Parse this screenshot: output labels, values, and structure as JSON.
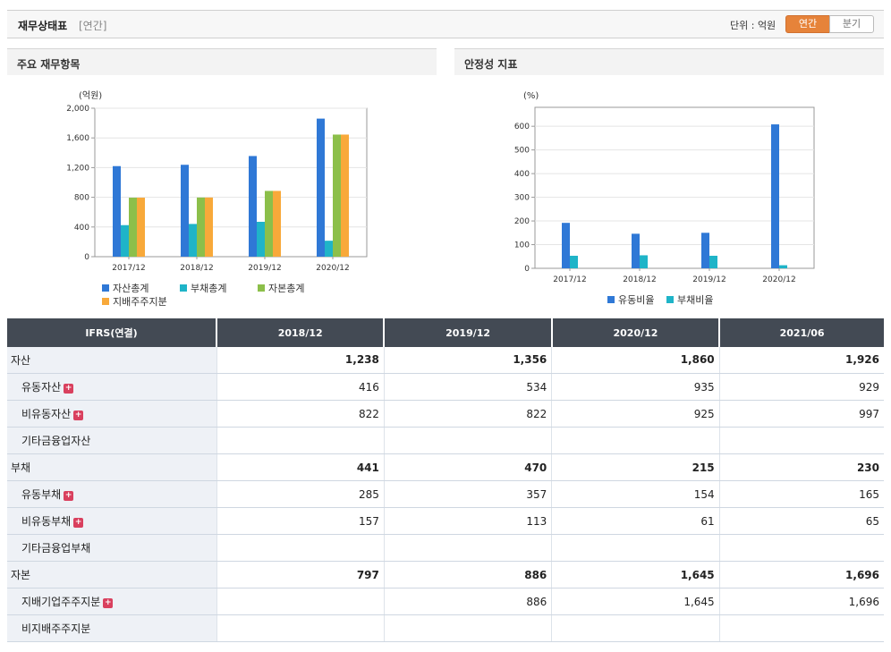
{
  "header": {
    "title": "재무상태표",
    "sub": "[연간]",
    "unit_text": "단위 : 억원",
    "tab_annual": "연간",
    "tab_quarter": "분기"
  },
  "left_panel": {
    "title": "주요 재무항목"
  },
  "right_panel": {
    "title": "안정성 지표"
  },
  "chart_data": [
    {
      "type": "bar",
      "unit_label": "(억원)",
      "categories": [
        "2017/12",
        "2018/12",
        "2019/12",
        "2020/12"
      ],
      "ylim": [
        0,
        2000
      ],
      "yticks": [
        0,
        400,
        800,
        1200,
        1600,
        2000
      ],
      "ytick_labels": [
        "0",
        "400",
        "800",
        "1,200",
        "1,600",
        "2,000"
      ],
      "series": [
        {
          "name": "자산총계",
          "color": "#2f78d6",
          "values": [
            1220,
            1238,
            1356,
            1860
          ]
        },
        {
          "name": "부채총계",
          "color": "#1fb4c8",
          "values": [
            425,
            441,
            470,
            215
          ]
        },
        {
          "name": "자본총계",
          "color": "#8cbf4a",
          "values": [
            795,
            797,
            886,
            1645
          ]
        },
        {
          "name": "지배주주지분",
          "color": "#f8a93a",
          "values": [
            795,
            797,
            886,
            1645
          ]
        }
      ]
    },
    {
      "type": "bar",
      "unit_label": "(%)",
      "categories": [
        "2017/12",
        "2018/12",
        "2019/12",
        "2020/12"
      ],
      "ylim": [
        0,
        680
      ],
      "yticks": [
        0,
        100,
        200,
        300,
        400,
        500,
        600
      ],
      "ytick_labels": [
        "0",
        "100",
        "200",
        "300",
        "400",
        "500",
        "600"
      ],
      "series": [
        {
          "name": "유동비율",
          "color": "#2f78d6",
          "values": [
            192,
            146,
            150,
            608
          ]
        },
        {
          "name": "부채비율",
          "color": "#1fb4c8",
          "values": [
            53,
            55,
            53,
            13
          ]
        }
      ]
    }
  ],
  "table": {
    "header_label": "IFRS(연결)",
    "columns": [
      "2018/12",
      "2019/12",
      "2020/12",
      "2021/06"
    ],
    "rows": [
      {
        "label": "자산",
        "sub": false,
        "expand": false,
        "values": [
          "1,238",
          "1,356",
          "1,860",
          "1,926"
        ]
      },
      {
        "label": "유동자산",
        "sub": true,
        "expand": true,
        "values": [
          "416",
          "534",
          "935",
          "929"
        ]
      },
      {
        "label": "비유동자산",
        "sub": true,
        "expand": true,
        "values": [
          "822",
          "822",
          "925",
          "997"
        ]
      },
      {
        "label": "기타금융업자산",
        "sub": true,
        "expand": false,
        "values": [
          "",
          "",
          "",
          ""
        ]
      },
      {
        "label": "부채",
        "sub": false,
        "expand": false,
        "values": [
          "441",
          "470",
          "215",
          "230"
        ]
      },
      {
        "label": "유동부채",
        "sub": true,
        "expand": true,
        "values": [
          "285",
          "357",
          "154",
          "165"
        ]
      },
      {
        "label": "비유동부채",
        "sub": true,
        "expand": true,
        "values": [
          "157",
          "113",
          "61",
          "65"
        ]
      },
      {
        "label": "기타금융업부채",
        "sub": true,
        "expand": false,
        "values": [
          "",
          "",
          "",
          ""
        ]
      },
      {
        "label": "자본",
        "sub": false,
        "expand": false,
        "values": [
          "797",
          "886",
          "1,645",
          "1,696"
        ]
      },
      {
        "label": "지배기업주주지분",
        "sub": true,
        "expand": true,
        "values": [
          "",
          "886",
          "1,645",
          "1,696"
        ]
      },
      {
        "label": "비지배주주지분",
        "sub": true,
        "expand": false,
        "values": [
          "",
          "",
          "",
          ""
        ]
      }
    ]
  }
}
